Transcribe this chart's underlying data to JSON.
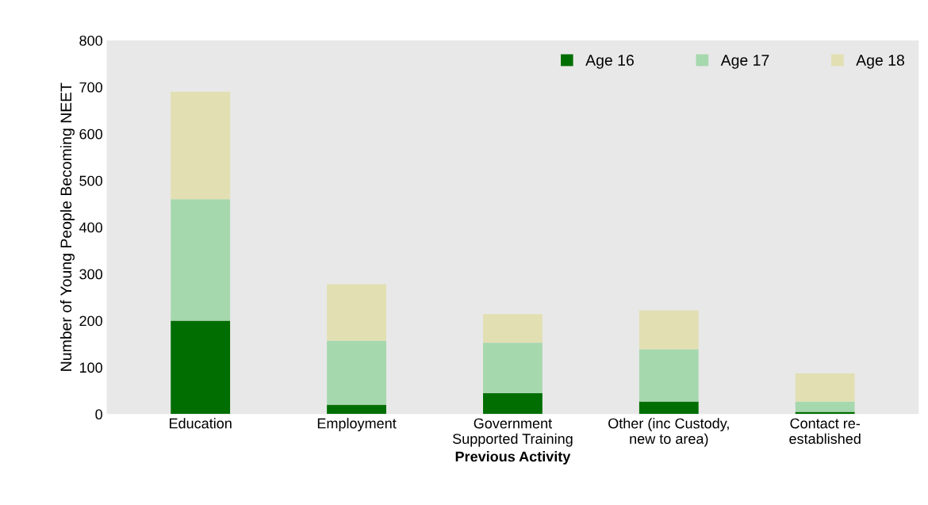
{
  "chart_data": {
    "type": "bar",
    "stacked": true,
    "categories": [
      "Education",
      "Employment",
      "Government\nSupported Training",
      "Other (inc Custody,\nnew to area)",
      "Contact re-\nestablished"
    ],
    "series": [
      {
        "name": "Age 16",
        "color": "#006e00",
        "values": [
          200,
          20,
          45,
          27,
          5
        ]
      },
      {
        "name": "Age 17",
        "color": "#a6d8ae",
        "values": [
          260,
          137,
          108,
          112,
          22
        ]
      },
      {
        "name": "Age 18",
        "color": "#e2dfb2",
        "values": [
          230,
          121,
          61,
          83,
          60
        ]
      }
    ],
    "xlabel": "Previous Activity",
    "ylabel": "Number of Young People Becoming NEET",
    "ylim": [
      0,
      800
    ],
    "yticks": [
      0,
      100,
      200,
      300,
      400,
      500,
      600,
      700,
      800
    ],
    "grid": false,
    "legend": "top right"
  }
}
